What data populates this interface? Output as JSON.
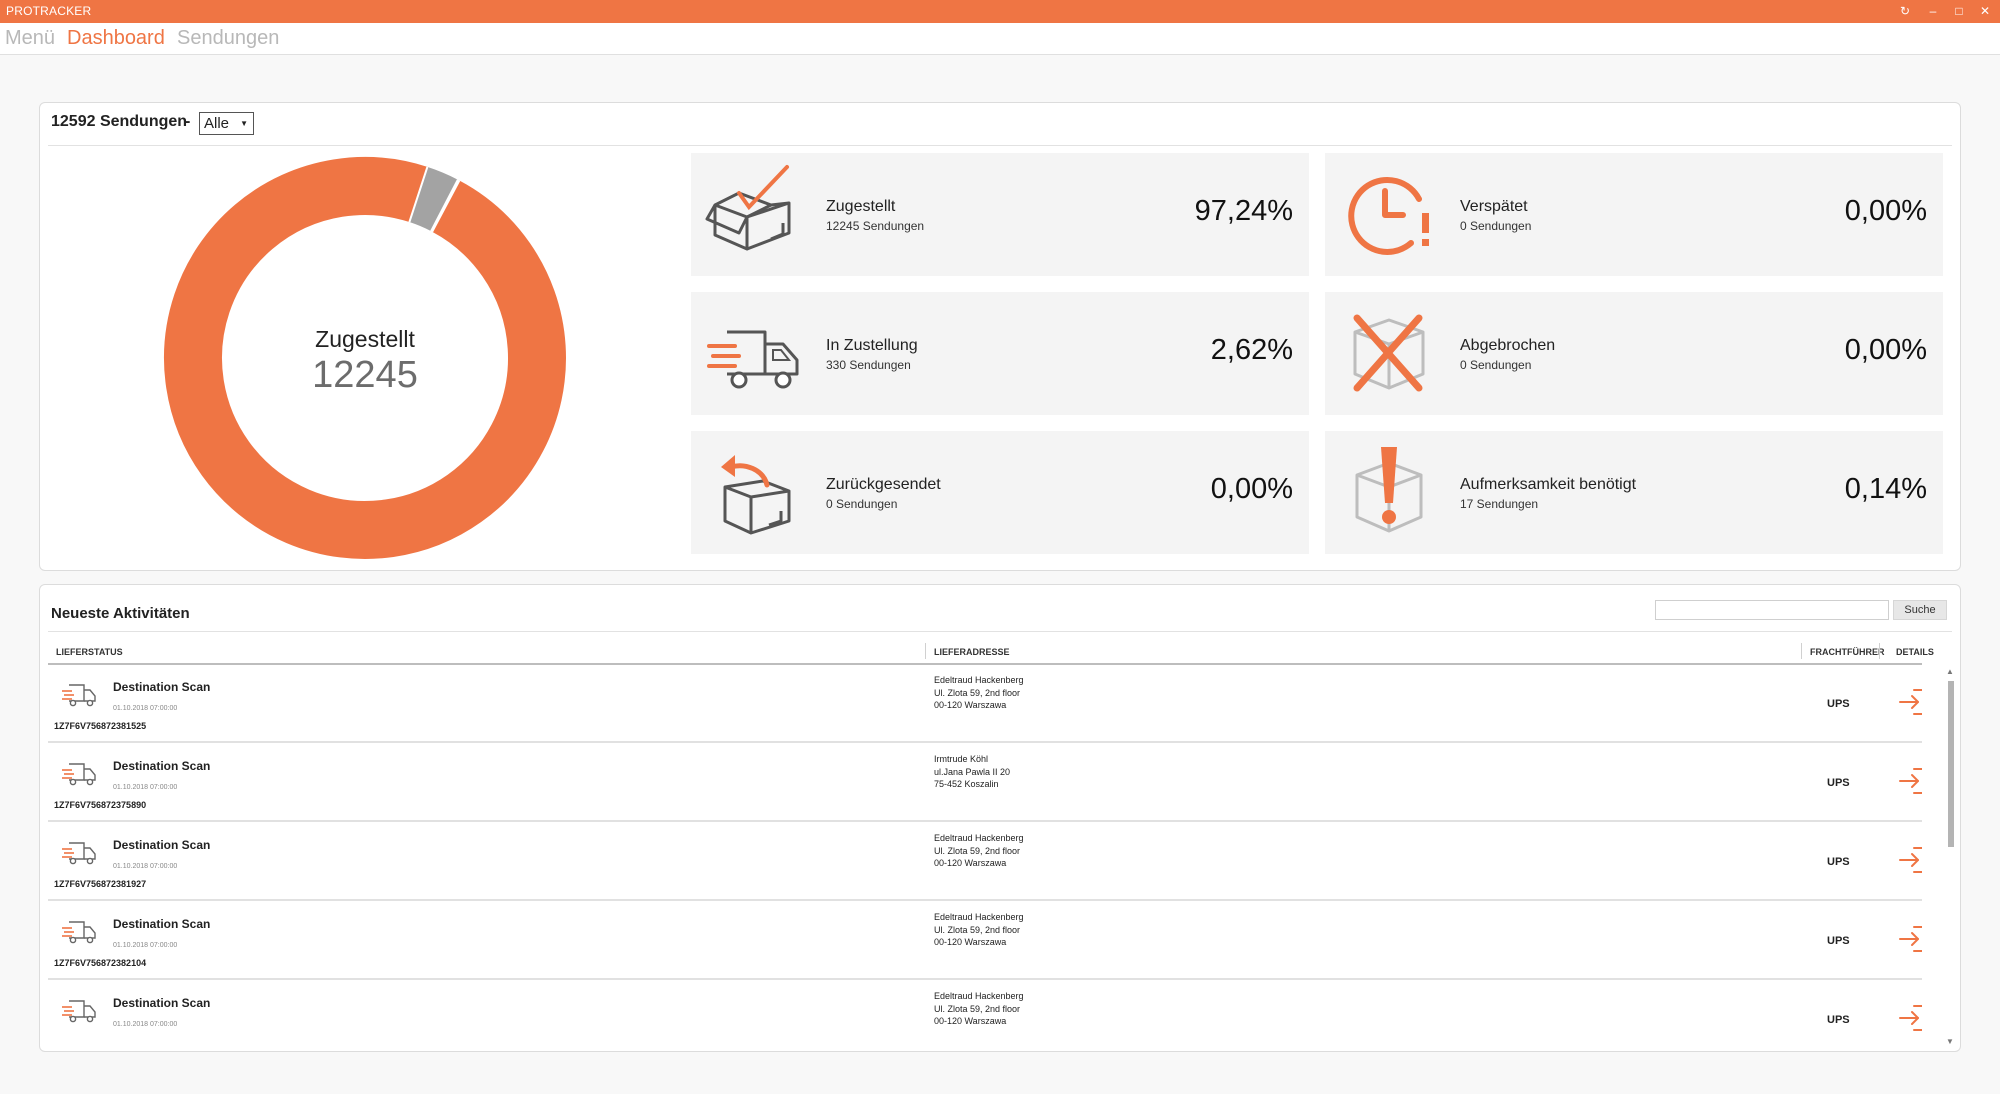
{
  "window": {
    "title": "PROTRACKER"
  },
  "nav": {
    "menu": "Menü",
    "dashboard": "Dashboard",
    "shipments": "Sendungen"
  },
  "summary": {
    "count_label": "12592 Sendungen",
    "separator": "-",
    "filter_value": "Alle"
  },
  "donut": {
    "title": "Zugestellt",
    "value": "12245"
  },
  "stats": [
    {
      "label": "Zugestellt",
      "sub": "12245 Sendungen",
      "pct": "97,24%",
      "icon": "delivered-box-icon"
    },
    {
      "label": "Verspätet",
      "sub": "0 Sendungen",
      "pct": "0,00%",
      "icon": "late-clock-icon"
    },
    {
      "label": "In Zustellung",
      "sub": "330 Sendungen",
      "pct": "2,62%",
      "icon": "truck-icon"
    },
    {
      "label": "Abgebrochen",
      "sub": "0 Sendungen",
      "pct": "0,00%",
      "icon": "cancelled-box-icon"
    },
    {
      "label": "Zurückgesendet",
      "sub": "0 Sendungen",
      "pct": "0,00%",
      "icon": "returned-box-icon"
    },
    {
      "label": "Aufmerksamkeit benötigt",
      "sub": "17 Sendungen",
      "pct": "0,14%",
      "icon": "attention-box-icon"
    }
  ],
  "activity": {
    "title": "Neueste Aktivitäten",
    "search_button": "Suche",
    "columns": {
      "status": "LIEFERSTATUS",
      "address": "LIEFERADRESSE",
      "carrier": "FRACHTFÜHRER",
      "details": "DETAILS"
    },
    "rows": [
      {
        "status": "Destination Scan",
        "date": "01.10.2018 07:00:00",
        "tracking": "1Z7F6V756872381525",
        "addr1": "Edeltraud Hackenberg",
        "addr2": "Ul. Zlota 59, 2nd floor",
        "addr3": "00-120 Warszawa",
        "carrier": "UPS"
      },
      {
        "status": "Destination Scan",
        "date": "01.10.2018 07:00:00",
        "tracking": "1Z7F6V756872375890",
        "addr1": "Irmtrude Köhl",
        "addr2": "ul.Jana Pawla II 20",
        "addr3": "75-452 Koszalin",
        "carrier": "UPS"
      },
      {
        "status": "Destination Scan",
        "date": "01.10.2018 07:00:00",
        "tracking": "1Z7F6V756872381927",
        "addr1": "Edeltraud Hackenberg",
        "addr2": "Ul. Zlota 59, 2nd floor",
        "addr3": "00-120 Warszawa",
        "carrier": "UPS"
      },
      {
        "status": "Destination Scan",
        "date": "01.10.2018 07:00:00",
        "tracking": "1Z7F6V756872382104",
        "addr1": "Edeltraud Hackenberg",
        "addr2": "Ul. Zlota 59, 2nd floor",
        "addr3": "00-120 Warszawa",
        "carrier": "UPS"
      },
      {
        "status": "Destination Scan",
        "date": "01.10.2018 07:00:00",
        "tracking": "",
        "addr1": "Edeltraud Hackenberg",
        "addr2": "Ul. Zlota 59, 2nd floor",
        "addr3": "00-120 Warszawa",
        "carrier": "UPS"
      }
    ]
  },
  "colors": {
    "accent": "#ef7544",
    "gray_segment": "#a3a3a3",
    "card_bg": "#f4f4f4"
  },
  "chart_data": {
    "type": "pie",
    "categories": [
      "Zugestellt",
      "In Zustellung",
      "Aufmerksamkeit benötigt"
    ],
    "values": [
      12245,
      330,
      17
    ],
    "title": "Zugestellt",
    "center_value": 12245
  }
}
